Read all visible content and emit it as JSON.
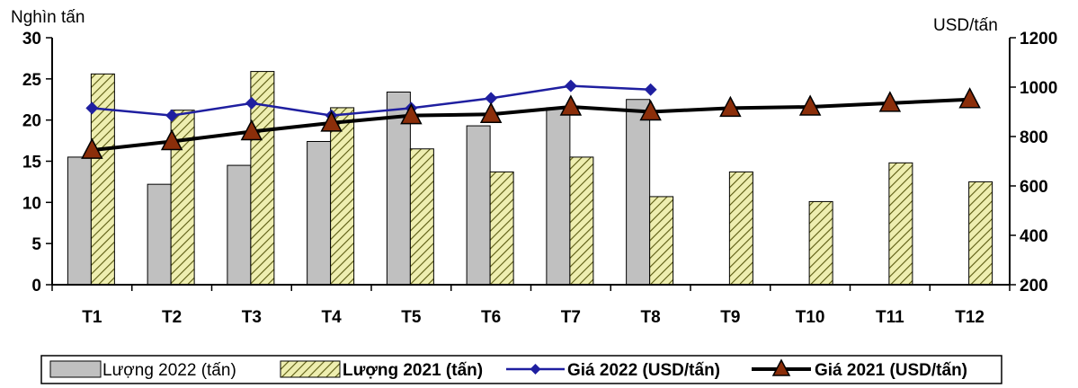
{
  "chart_data": {
    "type": "bar",
    "categories": [
      "T1",
      "T2",
      "T3",
      "T4",
      "T5",
      "T6",
      "T7",
      "T8",
      "T9",
      "T10",
      "T11",
      "T12"
    ],
    "y_left": {
      "label": "Nghìn tấn",
      "range": [
        0,
        30
      ],
      "ticks": [
        "0",
        "5",
        "10",
        "15",
        "20",
        "25",
        "30"
      ]
    },
    "y_right": {
      "label": "USD/tấn",
      "range": [
        200,
        1200
      ],
      "ticks": [
        "200",
        "400",
        "600",
        "800",
        "1000",
        "1200"
      ]
    },
    "series": [
      {
        "name": "Lượng 2022 (tấn)",
        "kind": "bar",
        "axis": "left",
        "color": "#c0c0c0",
        "values": [
          15.5,
          12.2,
          14.5,
          17.4,
          23.4,
          19.3,
          21.5,
          22.5,
          null,
          null,
          null,
          null
        ]
      },
      {
        "name": "Lượng 2021 (tấn)",
        "kind": "bar",
        "axis": "left",
        "pattern": "hatch",
        "color": "#eeeeb0",
        "values": [
          25.6,
          21.2,
          25.9,
          21.5,
          16.5,
          13.7,
          15.5,
          10.7,
          13.7,
          10.1,
          14.8,
          12.5
        ]
      },
      {
        "name": "Giá 2022 (USD/tấn)",
        "kind": "line",
        "axis": "right",
        "color": "#1f1fa0",
        "marker": "diamond",
        "values": [
          915,
          885,
          935,
          885,
          915,
          955,
          1005,
          990,
          null,
          null,
          null,
          null
        ]
      },
      {
        "name": "Giá 2021 (USD/tấn)",
        "kind": "line",
        "axis": "right",
        "color": "#000000",
        "marker": "triangle",
        "marker_color": "#8b2e0a",
        "values": [
          745,
          780,
          820,
          855,
          885,
          890,
          920,
          900,
          915,
          920,
          935,
          950
        ]
      }
    ],
    "legend": "bottom"
  }
}
